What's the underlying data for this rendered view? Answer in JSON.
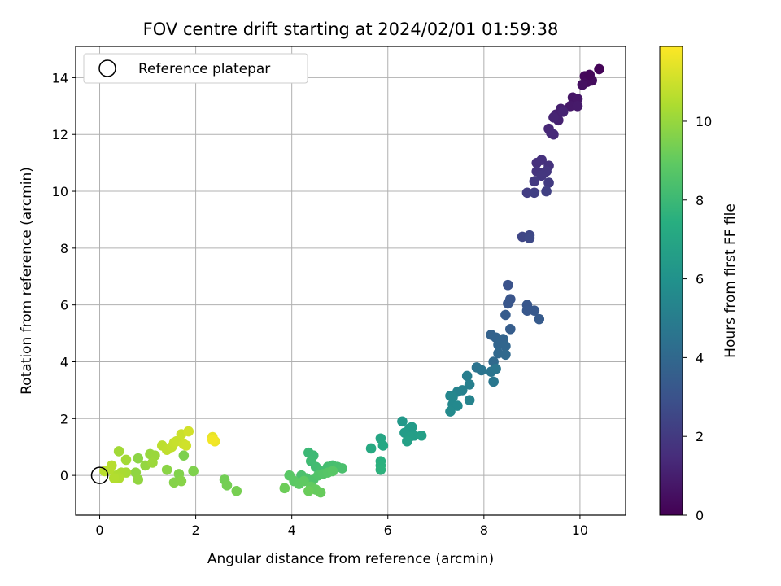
{
  "chart_data": {
    "type": "scatter",
    "title": "FOV centre drift starting at 2024/02/01 01:59:38",
    "xlabel": "Angular distance from reference (arcmin)",
    "ylabel": "Rotation from reference (arcmin)",
    "xlim": [
      -0.5,
      10.95
    ],
    "ylim": [
      -1.4,
      15.1
    ],
    "xticks": [
      "0",
      "2",
      "4",
      "6",
      "8",
      "10"
    ],
    "yticks": [
      "0",
      "2",
      "4",
      "6",
      "8",
      "10",
      "12",
      "14"
    ],
    "grid": true,
    "legend": {
      "placement": "upper-left",
      "entries": [
        {
          "label": "Reference platepar",
          "marker": "open-circle"
        }
      ]
    },
    "reference": {
      "x": 0,
      "y": 0,
      "label": "Reference platepar"
    },
    "colorbar": {
      "label": "Hours from first FF file",
      "colormap": "viridis",
      "range": [
        0,
        11.9
      ],
      "ticks": [
        "0",
        "2",
        "4",
        "6",
        "8",
        "10"
      ]
    },
    "points": [
      [
        10.4,
        14.3,
        0.1
      ],
      [
        10.1,
        14.05,
        0.25
      ],
      [
        10.2,
        14.0,
        0.3
      ],
      [
        10.15,
        13.85,
        0.35
      ],
      [
        10.25,
        13.9,
        0.4
      ],
      [
        10.05,
        13.75,
        0.5
      ],
      [
        10.2,
        14.1,
        0.2
      ],
      [
        9.85,
        13.3,
        0.7
      ],
      [
        9.95,
        13.25,
        0.75
      ],
      [
        9.8,
        13.0,
        0.8
      ],
      [
        9.95,
        13.0,
        0.85
      ],
      [
        9.6,
        12.9,
        1.0
      ],
      [
        9.5,
        12.7,
        1.05
      ],
      [
        9.55,
        12.5,
        1.1
      ],
      [
        9.65,
        12.8,
        1.15
      ],
      [
        9.45,
        12.6,
        1.2
      ],
      [
        9.35,
        12.2,
        1.3
      ],
      [
        9.4,
        12.05,
        1.35
      ],
      [
        9.45,
        12.0,
        1.4
      ],
      [
        9.1,
        11.0,
        1.6
      ],
      [
        9.2,
        11.1,
        1.65
      ],
      [
        9.35,
        10.9,
        1.7
      ],
      [
        9.1,
        10.7,
        1.75
      ],
      [
        9.25,
        10.65,
        1.8
      ],
      [
        9.3,
        10.7,
        1.85
      ],
      [
        9.2,
        10.55,
        1.9
      ],
      [
        9.05,
        10.35,
        2.0
      ],
      [
        9.35,
        10.3,
        2.05
      ],
      [
        8.9,
        9.95,
        2.15
      ],
      [
        9.05,
        9.95,
        2.2
      ],
      [
        9.3,
        10.0,
        2.25
      ],
      [
        8.8,
        8.4,
        2.5
      ],
      [
        8.95,
        8.45,
        2.55
      ],
      [
        8.95,
        8.35,
        2.6
      ],
      [
        8.5,
        6.7,
        3.0
      ],
      [
        8.55,
        6.2,
        3.1
      ],
      [
        8.5,
        6.05,
        3.15
      ],
      [
        8.9,
        6.0,
        3.2
      ],
      [
        8.9,
        5.8,
        3.25
      ],
      [
        9.05,
        5.8,
        3.3
      ],
      [
        9.15,
        5.5,
        3.4
      ],
      [
        8.45,
        5.65,
        3.45
      ],
      [
        8.55,
        5.15,
        3.5
      ],
      [
        8.15,
        4.95,
        3.7
      ],
      [
        8.25,
        4.85,
        3.75
      ],
      [
        8.4,
        4.8,
        3.8
      ],
      [
        8.3,
        4.6,
        3.85
      ],
      [
        8.45,
        4.55,
        3.9
      ],
      [
        8.3,
        4.3,
        4.0
      ],
      [
        8.45,
        4.25,
        4.05
      ],
      [
        8.2,
        4.0,
        4.1
      ],
      [
        7.85,
        3.8,
        4.5
      ],
      [
        7.95,
        3.7,
        4.55
      ],
      [
        8.15,
        3.65,
        4.6
      ],
      [
        8.25,
        3.75,
        4.65
      ],
      [
        8.2,
        3.3,
        4.7
      ],
      [
        7.65,
        3.5,
        5.0
      ],
      [
        7.7,
        3.2,
        5.1
      ],
      [
        7.55,
        3.0,
        5.2
      ],
      [
        7.45,
        2.95,
        5.25
      ],
      [
        7.7,
        2.65,
        5.3
      ],
      [
        7.3,
        2.8,
        5.4
      ],
      [
        7.35,
        2.75,
        5.45
      ],
      [
        7.35,
        2.5,
        5.5
      ],
      [
        7.45,
        2.45,
        5.55
      ],
      [
        7.3,
        2.25,
        5.6
      ],
      [
        6.3,
        1.9,
        6.3
      ],
      [
        6.45,
        1.65,
        6.4
      ],
      [
        6.5,
        1.7,
        6.45
      ],
      [
        6.35,
        1.5,
        6.5
      ],
      [
        6.55,
        1.4,
        6.55
      ],
      [
        6.45,
        1.35,
        6.6
      ],
      [
        6.7,
        1.4,
        6.65
      ],
      [
        6.4,
        1.2,
        6.7
      ],
      [
        5.85,
        1.3,
        7.0
      ],
      [
        5.9,
        1.05,
        7.1
      ],
      [
        5.65,
        0.95,
        7.2
      ],
      [
        5.85,
        0.5,
        7.5
      ],
      [
        5.85,
        0.35,
        7.55
      ],
      [
        5.85,
        0.2,
        7.6
      ],
      [
        4.35,
        0.8,
        8.0
      ],
      [
        4.45,
        0.7,
        8.05
      ],
      [
        4.4,
        0.5,
        8.1
      ],
      [
        4.5,
        0.3,
        8.15
      ],
      [
        4.6,
        0.15,
        8.2
      ],
      [
        4.75,
        0.3,
        8.25
      ],
      [
        4.85,
        0.35,
        8.3
      ],
      [
        4.95,
        0.3,
        8.35
      ],
      [
        5.05,
        0.25,
        8.4
      ],
      [
        4.2,
        0.0,
        8.45
      ],
      [
        4.3,
        -0.1,
        8.5
      ],
      [
        4.45,
        -0.15,
        8.55
      ],
      [
        4.55,
        0.0,
        8.6
      ],
      [
        4.65,
        0.05,
        8.65
      ],
      [
        4.75,
        0.1,
        8.7
      ],
      [
        4.85,
        0.15,
        8.75
      ],
      [
        3.95,
        0.0,
        8.8
      ],
      [
        4.05,
        -0.2,
        8.85
      ],
      [
        4.15,
        -0.3,
        8.9
      ],
      [
        4.25,
        -0.2,
        8.95
      ],
      [
        4.4,
        -0.4,
        9.0
      ],
      [
        4.5,
        -0.5,
        9.05
      ],
      [
        4.6,
        -0.6,
        9.1
      ],
      [
        4.35,
        -0.55,
        9.15
      ],
      [
        3.85,
        -0.45,
        9.2
      ],
      [
        2.6,
        -0.15,
        9.3
      ],
      [
        2.65,
        -0.35,
        9.35
      ],
      [
        2.85,
        -0.55,
        9.4
      ],
      [
        1.75,
        0.7,
        9.5
      ],
      [
        1.95,
        0.15,
        9.55
      ],
      [
        1.65,
        0.05,
        9.6
      ],
      [
        1.55,
        -0.25,
        9.65
      ],
      [
        1.7,
        -0.2,
        9.7
      ],
      [
        1.4,
        0.2,
        9.75
      ],
      [
        0.8,
        0.6,
        9.8
      ],
      [
        0.75,
        0.1,
        9.85
      ],
      [
        0.8,
        -0.15,
        9.9
      ],
      [
        0.95,
        0.35,
        9.95
      ],
      [
        1.05,
        0.75,
        10.0
      ],
      [
        1.15,
        0.7,
        10.05
      ],
      [
        1.1,
        0.45,
        10.1
      ],
      [
        0.4,
        0.85,
        10.2
      ],
      [
        0.55,
        0.55,
        10.25
      ],
      [
        0.55,
        0.1,
        10.3
      ],
      [
        0.45,
        0.1,
        10.35
      ],
      [
        0.35,
        0.0,
        10.4
      ],
      [
        0.4,
        -0.1,
        10.45
      ],
      [
        0.3,
        -0.1,
        10.5
      ],
      [
        0.2,
        0.2,
        10.55
      ],
      [
        0.25,
        0.35,
        10.6
      ],
      [
        0.1,
        0.15,
        10.65
      ],
      [
        1.3,
        1.05,
        10.7
      ],
      [
        1.4,
        0.9,
        10.75
      ],
      [
        1.5,
        1.0,
        10.8
      ],
      [
        1.55,
        1.15,
        10.85
      ],
      [
        1.6,
        1.2,
        10.9
      ],
      [
        1.7,
        1.45,
        10.95
      ],
      [
        1.75,
        1.1,
        11.0
      ],
      [
        1.8,
        1.05,
        11.05
      ],
      [
        1.85,
        1.55,
        11.1
      ],
      [
        2.35,
        1.35,
        11.5
      ],
      [
        2.4,
        1.2,
        11.6
      ],
      [
        2.35,
        1.25,
        11.7
      ]
    ]
  }
}
